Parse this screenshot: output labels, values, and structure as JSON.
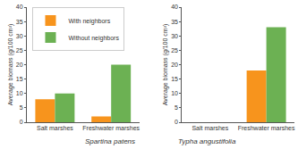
{
  "chart_data": [
    {
      "type": "bar",
      "title": "Spartina patens",
      "y_label": "Average biomass (g/100 cm²)",
      "categories": [
        "Salt marshes",
        "Freshwater marshes"
      ],
      "series": [
        {
          "name": "With neighbors",
          "color": "#f7941d",
          "values": [
            8,
            2
          ]
        },
        {
          "name": "Without neighbors",
          "color": "#6cb153",
          "values": [
            10,
            20
          ]
        }
      ],
      "ylim": [
        0,
        40
      ],
      "yticks": [
        0,
        5,
        10,
        15,
        20,
        25,
        30,
        35,
        40
      ],
      "grid": false,
      "legend": "top left"
    },
    {
      "type": "bar",
      "title": "Typha angustifolia",
      "y_label": "Average biomass (g/100 cm²)",
      "categories": [
        "Salt marshes",
        "Freshwater marshes"
      ],
      "series": [
        {
          "name": "With neighbors",
          "color": "#f7941d",
          "values": [
            null,
            18
          ]
        },
        {
          "name": "Without neighbors",
          "color": "#6cb153",
          "values": [
            null,
            33
          ]
        }
      ],
      "ylim": [
        0,
        40
      ],
      "yticks": [
        0,
        5,
        10,
        15,
        20,
        25,
        30,
        35,
        40
      ],
      "grid": false
    }
  ]
}
